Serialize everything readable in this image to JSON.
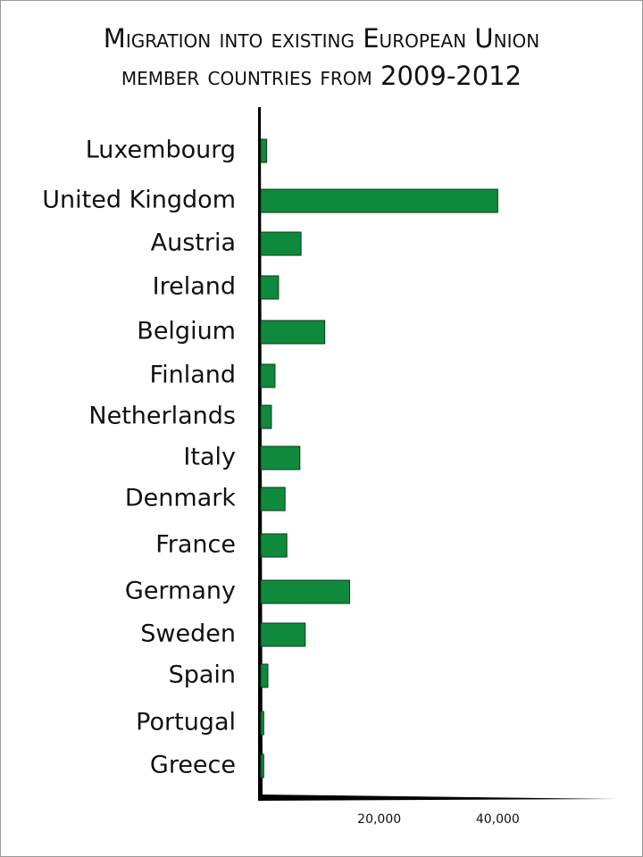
{
  "chart_data": {
    "type": "bar",
    "orientation": "horizontal",
    "title": "Migration into existing European Union member countries from 2009-2012",
    "categories": [
      "Luxembourg",
      "United Kingdom",
      "Austria",
      "Ireland",
      "Belgium",
      "Finland",
      "Netherlands",
      "Italy",
      "Denmark",
      "France",
      "Germany",
      "Sweden",
      "Spain",
      "Portugal",
      "Greece"
    ],
    "values": [
      1000,
      40000,
      6800,
      3000,
      10800,
      2400,
      1800,
      6600,
      4100,
      4400,
      15000,
      7500,
      1200,
      500,
      500
    ],
    "color": "#0f8a3c",
    "xlim": [
      0,
      60000
    ],
    "xticks": [
      {
        "value": 20000,
        "label": "20,000"
      },
      {
        "value": 40000,
        "label": "40,000"
      }
    ]
  }
}
